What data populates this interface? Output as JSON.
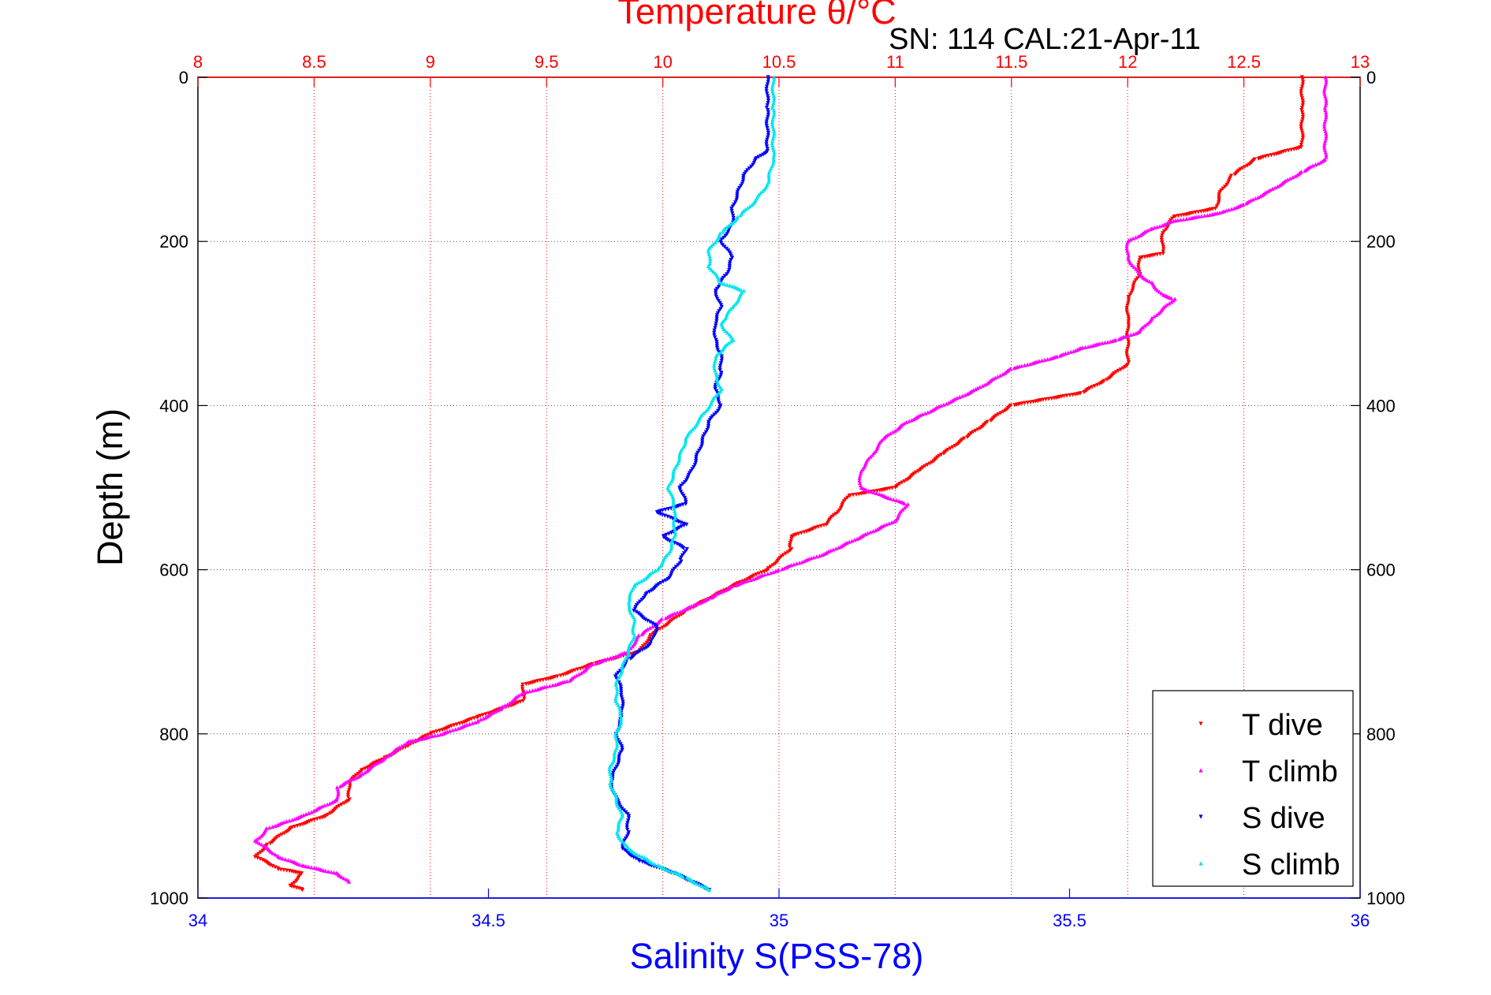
{
  "chart_data": {
    "type": "scatter",
    "title": "Temperature θ/°C",
    "subtitle": "SN: 114  CAL:21-Apr-11",
    "xlabel_top": "Temperature θ/°C",
    "xlabel_bottom": "Salinity S(PSS-78)",
    "ylabel": "Depth (m)",
    "top_axis": {
      "range": [
        8,
        13
      ],
      "ticks": [
        "8",
        "8.5",
        "9",
        "9.5",
        "10",
        "10.5",
        "11",
        "11.5",
        "12",
        "12.5",
        "13"
      ],
      "color": "#ff0000"
    },
    "bottom_axis": {
      "range": [
        34,
        36
      ],
      "ticks": [
        "34",
        "34.5",
        "35",
        "35.5",
        "36"
      ],
      "color": "#0000ff"
    },
    "y_axis": {
      "range": [
        0,
        1000
      ],
      "reversed": true,
      "ticks": [
        "0",
        "200",
        "400",
        "600",
        "800",
        "1000"
      ]
    },
    "grid": true,
    "legend_position": "bottom-right",
    "series": [
      {
        "name": "T dive",
        "axis": "temperature",
        "color": "#ff0000",
        "marker": "triangle-down",
        "points": [
          [
            12.75,
            0
          ],
          [
            12.75,
            40
          ],
          [
            12.75,
            85
          ],
          [
            12.55,
            100
          ],
          [
            12.45,
            120
          ],
          [
            12.4,
            140
          ],
          [
            12.38,
            160
          ],
          [
            12.2,
            170
          ],
          [
            12.15,
            190
          ],
          [
            12.15,
            215
          ],
          [
            12.05,
            220
          ],
          [
            12.05,
            240
          ],
          [
            12.0,
            270
          ],
          [
            12.0,
            300
          ],
          [
            12.0,
            320
          ],
          [
            12.0,
            350
          ],
          [
            11.9,
            370
          ],
          [
            11.8,
            385
          ],
          [
            11.5,
            400
          ],
          [
            11.4,
            420
          ],
          [
            11.3,
            440
          ],
          [
            11.2,
            460
          ],
          [
            11.1,
            480
          ],
          [
            11.0,
            500
          ],
          [
            10.8,
            510
          ],
          [
            10.75,
            530
          ],
          [
            10.7,
            545
          ],
          [
            10.55,
            560
          ],
          [
            10.55,
            575
          ],
          [
            10.45,
            600
          ],
          [
            10.3,
            620
          ],
          [
            10.1,
            650
          ],
          [
            9.95,
            680
          ],
          [
            9.9,
            700
          ],
          [
            9.7,
            715
          ],
          [
            9.55,
            730
          ],
          [
            9.4,
            740
          ],
          [
            9.4,
            760
          ],
          [
            9.2,
            780
          ],
          [
            9.0,
            800
          ],
          [
            8.9,
            815
          ],
          [
            8.8,
            830
          ],
          [
            8.7,
            845
          ],
          [
            8.65,
            860
          ],
          [
            8.65,
            880
          ],
          [
            8.55,
            900
          ],
          [
            8.4,
            915
          ],
          [
            8.3,
            935
          ],
          [
            8.25,
            950
          ],
          [
            8.35,
            965
          ],
          [
            8.45,
            970
          ],
          [
            8.4,
            985
          ],
          [
            8.45,
            990
          ]
        ]
      },
      {
        "name": "T climb",
        "axis": "temperature",
        "color": "#ff00ff",
        "marker": "triangle-up",
        "points": [
          [
            12.85,
            0
          ],
          [
            12.85,
            40
          ],
          [
            12.85,
            100
          ],
          [
            12.75,
            115
          ],
          [
            12.6,
            140
          ],
          [
            12.5,
            155
          ],
          [
            12.4,
            165
          ],
          [
            12.2,
            175
          ],
          [
            12.1,
            185
          ],
          [
            12.0,
            200
          ],
          [
            12.0,
            220
          ],
          [
            12.05,
            240
          ],
          [
            12.1,
            250
          ],
          [
            12.15,
            265
          ],
          [
            12.2,
            270
          ],
          [
            12.1,
            295
          ],
          [
            12.05,
            310
          ],
          [
            11.95,
            320
          ],
          [
            11.8,
            330
          ],
          [
            11.7,
            340
          ],
          [
            11.5,
            355
          ],
          [
            11.35,
            380
          ],
          [
            11.2,
            400
          ],
          [
            11.05,
            420
          ],
          [
            10.95,
            440
          ],
          [
            10.9,
            460
          ],
          [
            10.85,
            480
          ],
          [
            10.85,
            500
          ],
          [
            11.05,
            520
          ],
          [
            11.0,
            540
          ],
          [
            10.85,
            560
          ],
          [
            10.7,
            580
          ],
          [
            10.5,
            600
          ],
          [
            10.3,
            620
          ],
          [
            10.2,
            635
          ],
          [
            10.0,
            660
          ],
          [
            9.9,
            680
          ],
          [
            9.85,
            700
          ],
          [
            9.7,
            715
          ],
          [
            9.6,
            735
          ],
          [
            9.4,
            750
          ],
          [
            9.3,
            770
          ],
          [
            9.2,
            785
          ],
          [
            9.05,
            800
          ],
          [
            8.9,
            810
          ],
          [
            8.8,
            830
          ],
          [
            8.7,
            850
          ],
          [
            8.6,
            865
          ],
          [
            8.6,
            880
          ],
          [
            8.45,
            900
          ],
          [
            8.3,
            915
          ],
          [
            8.25,
            930
          ],
          [
            8.35,
            950
          ],
          [
            8.45,
            960
          ],
          [
            8.6,
            970
          ],
          [
            8.65,
            980
          ]
        ]
      },
      {
        "name": "S dive",
        "axis": "salinity",
        "color": "#0000ff",
        "marker": "triangle-down",
        "points": [
          [
            34.98,
            0
          ],
          [
            34.98,
            40
          ],
          [
            34.98,
            90
          ],
          [
            34.96,
            100
          ],
          [
            34.94,
            120
          ],
          [
            34.93,
            140
          ],
          [
            34.92,
            160
          ],
          [
            34.92,
            180
          ],
          [
            34.9,
            200
          ],
          [
            34.92,
            220
          ],
          [
            34.91,
            240
          ],
          [
            34.89,
            260
          ],
          [
            34.9,
            280
          ],
          [
            34.89,
            300
          ],
          [
            34.89,
            320
          ],
          [
            34.9,
            340
          ],
          [
            34.9,
            360
          ],
          [
            34.89,
            380
          ],
          [
            34.9,
            400
          ],
          [
            34.88,
            420
          ],
          [
            34.87,
            440
          ],
          [
            34.86,
            460
          ],
          [
            34.85,
            480
          ],
          [
            34.83,
            500
          ],
          [
            34.84,
            520
          ],
          [
            34.79,
            530
          ],
          [
            34.84,
            545
          ],
          [
            34.8,
            560
          ],
          [
            34.84,
            575
          ],
          [
            34.83,
            590
          ],
          [
            34.81,
            610
          ],
          [
            34.77,
            630
          ],
          [
            34.75,
            650
          ],
          [
            34.79,
            670
          ],
          [
            34.78,
            690
          ],
          [
            34.74,
            710
          ],
          [
            34.72,
            730
          ],
          [
            34.73,
            750
          ],
          [
            34.73,
            780
          ],
          [
            34.72,
            800
          ],
          [
            34.73,
            820
          ],
          [
            34.72,
            840
          ],
          [
            34.71,
            860
          ],
          [
            34.72,
            880
          ],
          [
            34.74,
            900
          ],
          [
            34.74,
            920
          ],
          [
            34.73,
            940
          ],
          [
            34.76,
            955
          ],
          [
            34.82,
            970
          ],
          [
            34.88,
            990
          ]
        ]
      },
      {
        "name": "S climb",
        "axis": "salinity",
        "color": "#00e5ee",
        "marker": "triangle-up",
        "points": [
          [
            34.99,
            0
          ],
          [
            34.99,
            40
          ],
          [
            34.99,
            100
          ],
          [
            34.98,
            130
          ],
          [
            34.96,
            150
          ],
          [
            34.93,
            170
          ],
          [
            34.9,
            190
          ],
          [
            34.88,
            210
          ],
          [
            34.88,
            230
          ],
          [
            34.9,
            250
          ],
          [
            34.94,
            260
          ],
          [
            34.92,
            280
          ],
          [
            34.9,
            300
          ],
          [
            34.92,
            320
          ],
          [
            34.89,
            340
          ],
          [
            34.89,
            360
          ],
          [
            34.9,
            380
          ],
          [
            34.88,
            400
          ],
          [
            34.86,
            420
          ],
          [
            34.84,
            440
          ],
          [
            34.83,
            460
          ],
          [
            34.82,
            480
          ],
          [
            34.81,
            500
          ],
          [
            34.82,
            520
          ],
          [
            34.82,
            540
          ],
          [
            34.82,
            560
          ],
          [
            34.81,
            580
          ],
          [
            34.79,
            600
          ],
          [
            34.75,
            620
          ],
          [
            34.74,
            640
          ],
          [
            34.75,
            660
          ],
          [
            34.75,
            680
          ],
          [
            34.74,
            700
          ],
          [
            34.73,
            720
          ],
          [
            34.72,
            740
          ],
          [
            34.72,
            760
          ],
          [
            34.73,
            780
          ],
          [
            34.72,
            800
          ],
          [
            34.72,
            820
          ],
          [
            34.71,
            840
          ],
          [
            34.71,
            860
          ],
          [
            34.72,
            880
          ],
          [
            34.73,
            900
          ],
          [
            34.72,
            920
          ],
          [
            34.74,
            940
          ],
          [
            34.79,
            960
          ],
          [
            34.84,
            975
          ],
          [
            34.88,
            990
          ]
        ]
      }
    ]
  }
}
